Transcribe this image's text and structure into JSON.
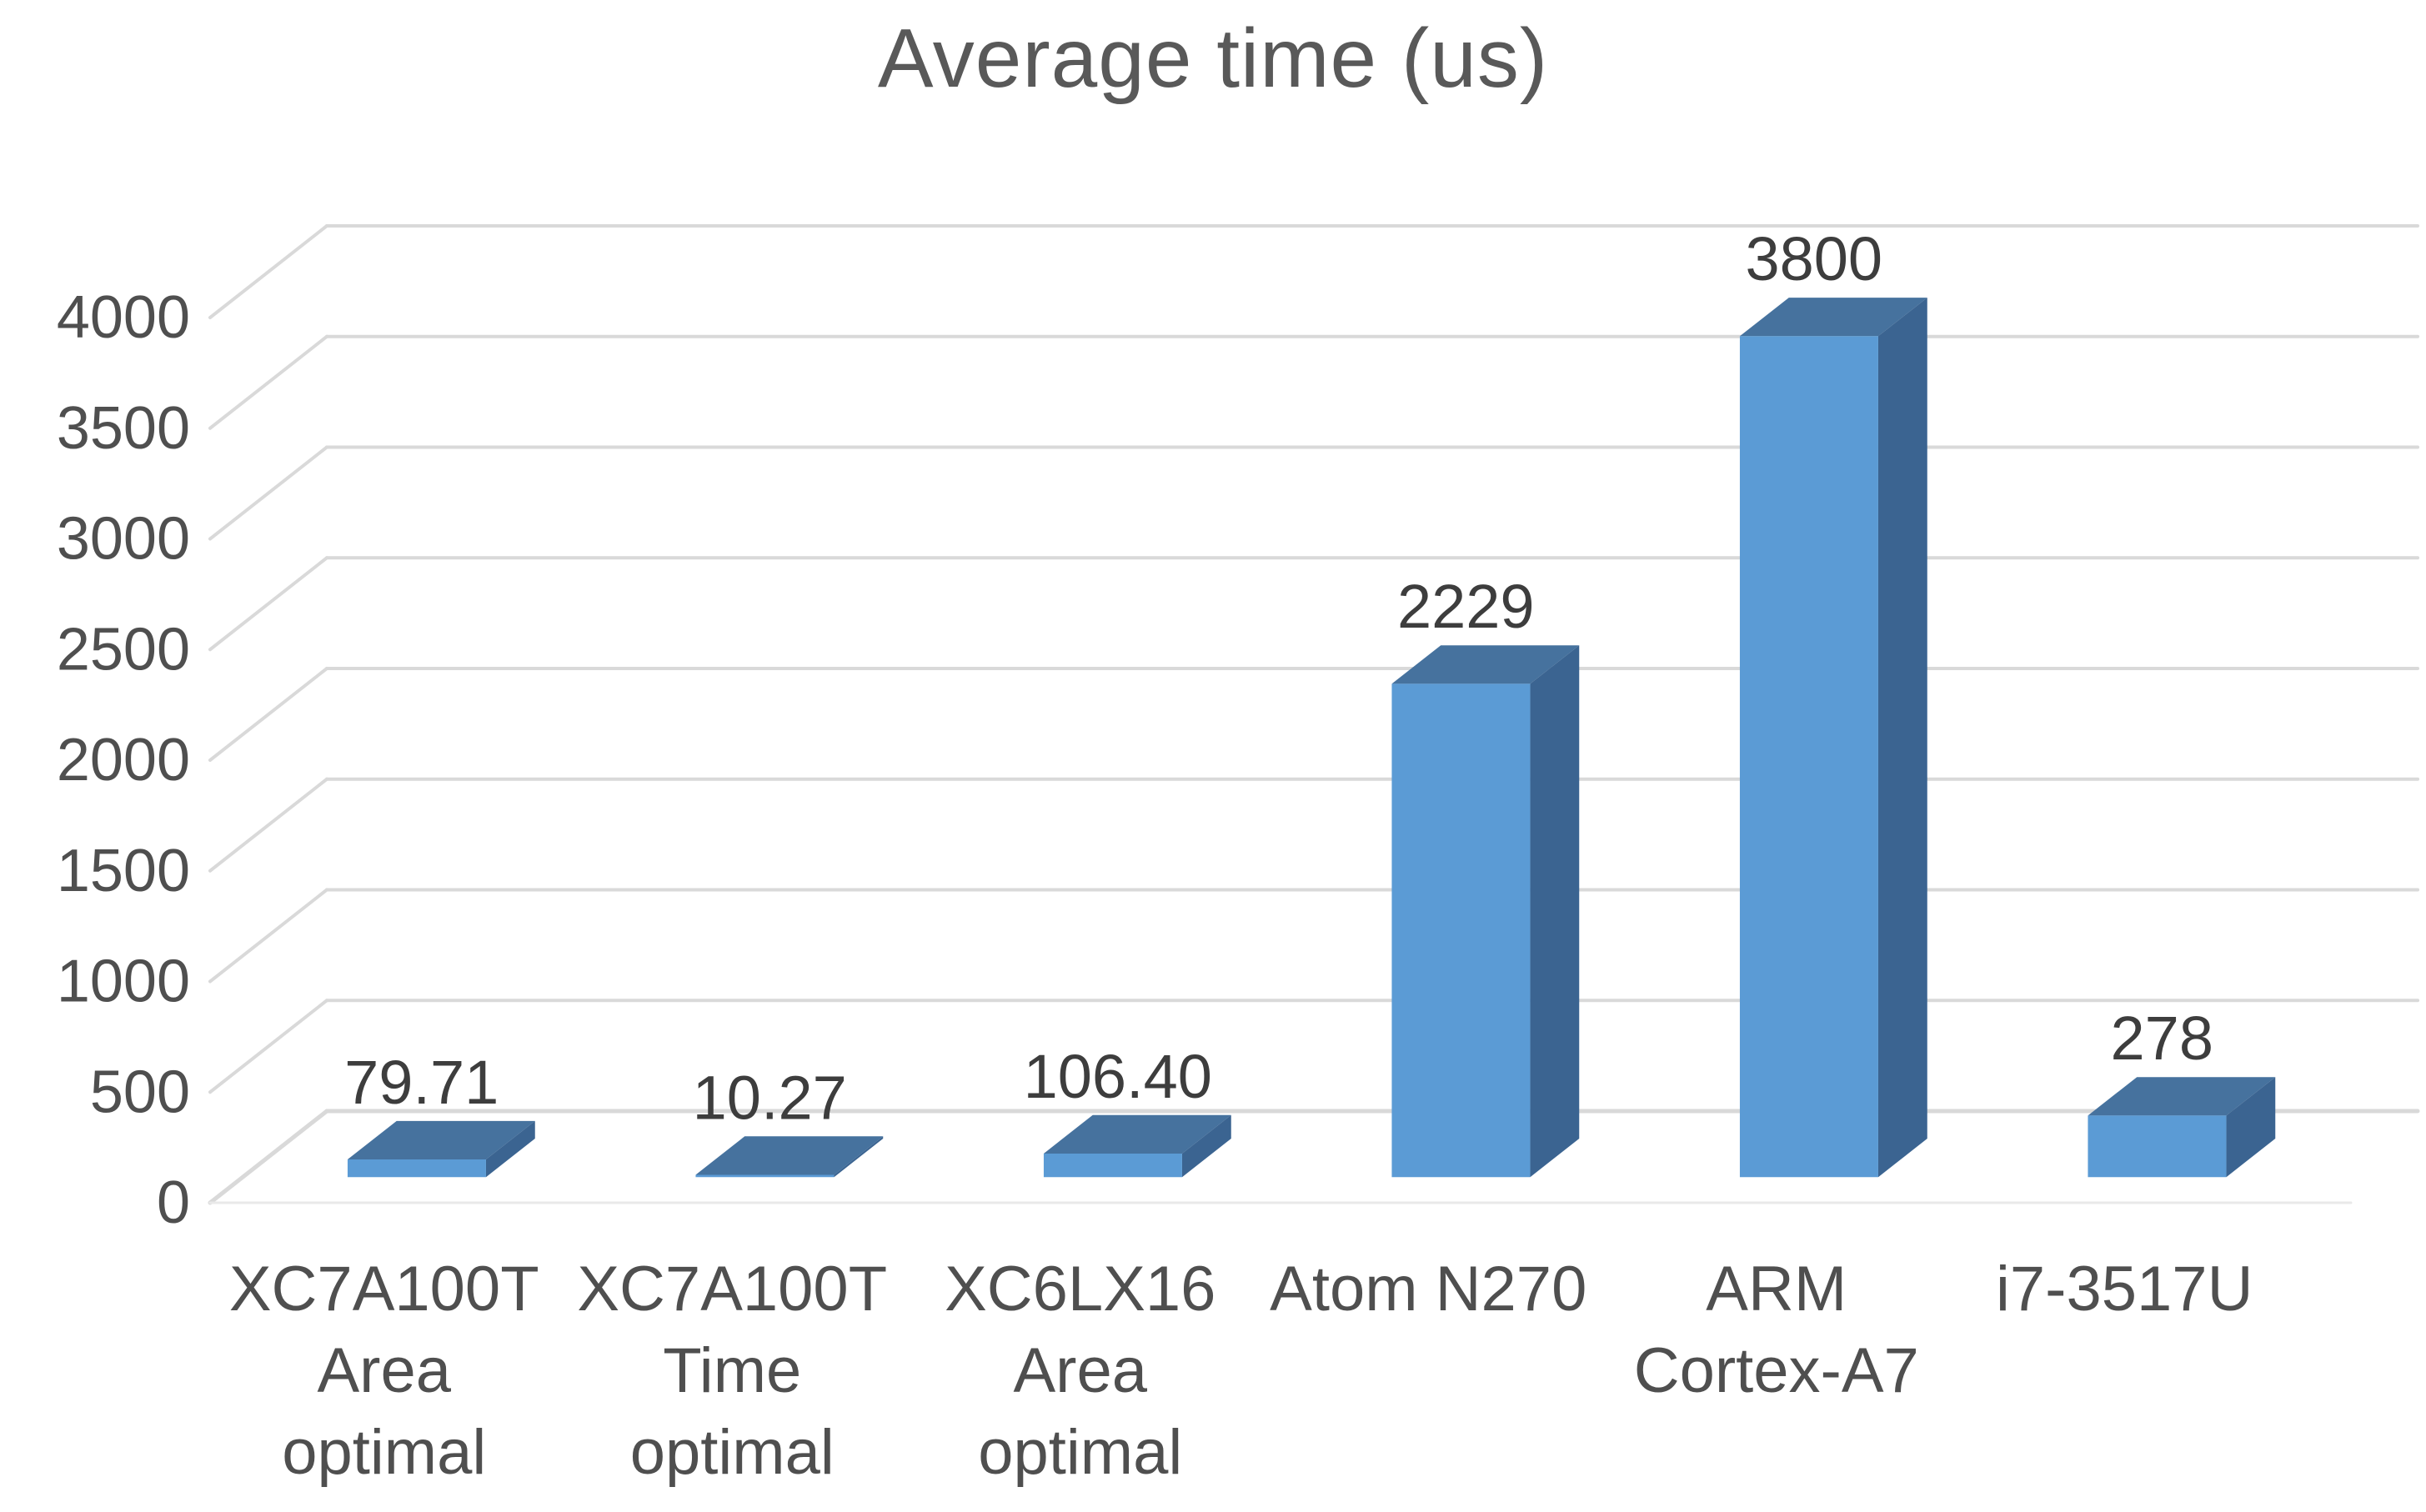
{
  "chart_data": {
    "type": "bar",
    "variant": "3d-column",
    "title": "Average time (us)",
    "xlabel": "",
    "ylabel": "",
    "categories": [
      "XC7A100T Area optimal",
      "XC7A100T Time optimal",
      "XC6LX16 Area optimal",
      "Atom N270",
      "ARM Cortex-A7",
      "i7-3517U"
    ],
    "category_lines": [
      [
        "XC7A100T",
        "Area",
        "optimal"
      ],
      [
        "XC7A100T",
        "Time",
        "optimal"
      ],
      [
        "XC6LX16",
        "Area",
        "optimal"
      ],
      [
        "Atom N270"
      ],
      [
        "ARM",
        "Cortex-A7"
      ],
      [
        "i7-3517U"
      ]
    ],
    "series": [
      {
        "name": "Average time (us)",
        "values": [
          79.71,
          10.27,
          106.4,
          2229,
          3800,
          278
        ]
      }
    ],
    "value_labels": [
      "79.71",
      "10.27",
      "106.40",
      "2229",
      "3800",
      "278"
    ],
    "ylim": [
      0,
      4000
    ],
    "ytick_step": 500,
    "ytick_labels": [
      "0",
      "500",
      "1000",
      "1500",
      "2000",
      "2500",
      "3000",
      "3500",
      "4000"
    ],
    "grid": true,
    "legend": "none",
    "colors": {
      "bar_front": "#5B9BD5",
      "bar_top": "#46729E",
      "bar_side": "#3B6491",
      "gridline": "#D9D9D9",
      "front_axis_line": "#E9E9E9",
      "title_text": "#595959",
      "axis_text": "#4F4F4F",
      "category_text": "#4F4F4F",
      "data_label_text": "#3D3D3D",
      "background": "#FFFFFF"
    }
  }
}
